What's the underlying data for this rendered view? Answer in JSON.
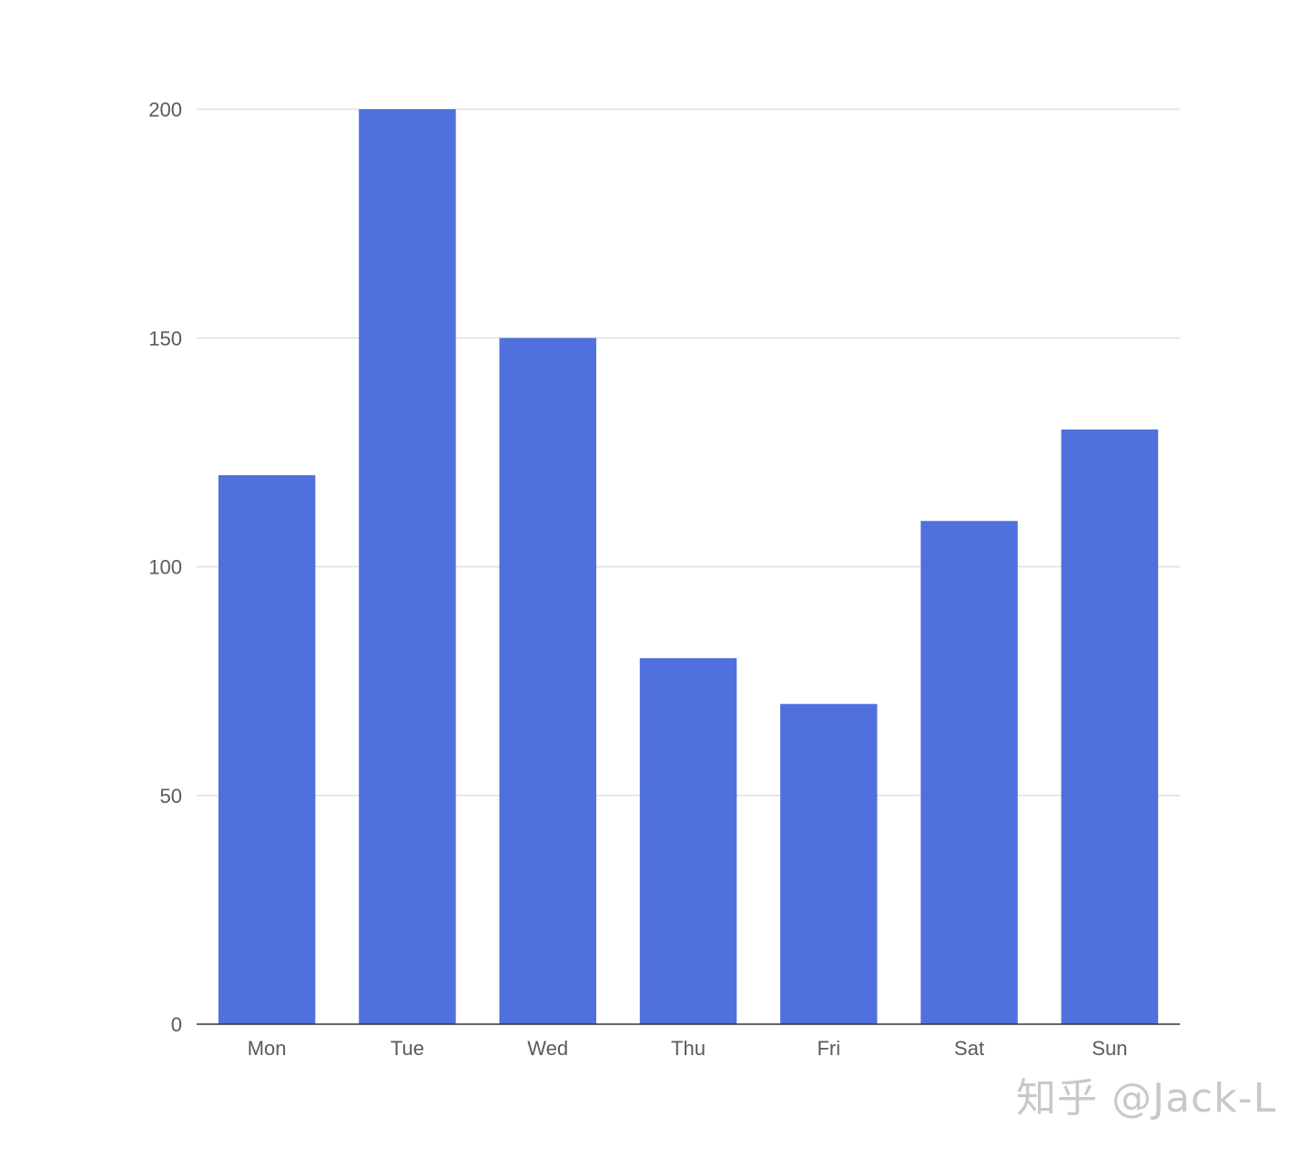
{
  "chart_data": {
    "type": "bar",
    "categories": [
      "Mon",
      "Tue",
      "Wed",
      "Thu",
      "Fri",
      "Sat",
      "Sun"
    ],
    "values": [
      120,
      200,
      150,
      80,
      70,
      110,
      130
    ],
    "title": "",
    "xlabel": "",
    "ylabel": "",
    "ylim": [
      0,
      200
    ],
    "yticks": [
      0,
      50,
      100,
      150,
      200
    ],
    "grid": true,
    "legend": "none",
    "bar_color": "#5070DD",
    "grid_color": "#E0E0E0",
    "axis_color": "#333333"
  },
  "watermark": {
    "text": "知乎 @Jack-L"
  }
}
